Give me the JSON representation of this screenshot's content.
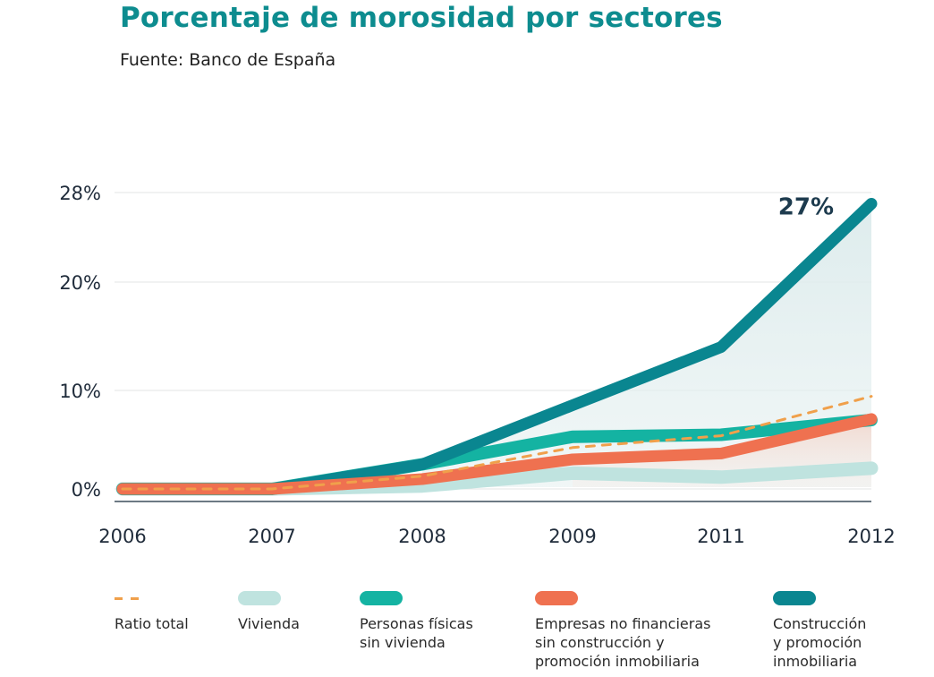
{
  "header": {
    "title": "Porcentaje de morosidad por sectores",
    "source": "Fuente: Banco de España"
  },
  "chart_data": {
    "type": "line",
    "title": "Porcentaje de morosidad por sectores",
    "subtitle": "Fuente: Banco de España",
    "xlabel": "",
    "ylabel": "",
    "x": [
      "2006",
      "2007",
      "2008",
      "2009",
      "2011",
      "2012"
    ],
    "y_ticks": [
      "0%",
      "10%",
      "20%",
      "28%"
    ],
    "grid": true,
    "legend_position": "bottom",
    "annotation": {
      "text": "27%",
      "series": "Construcción y promoción inmobiliaria",
      "x": "2012"
    },
    "series": [
      {
        "name": "Ratio total",
        "style": "dashed",
        "color": "#f0a04b",
        "values": [
          0,
          0,
          1.3,
          4.2,
          5.4,
          9.4
        ]
      },
      {
        "name": "Vivienda",
        "style": "solid",
        "color": "#bfe3df",
        "values": [
          0,
          0,
          0.3,
          1.6,
          1.2,
          2.1
        ]
      },
      {
        "name": "Personas físicas sin vivienda",
        "style": "solid",
        "color": "#14b3a2",
        "values": [
          0,
          0,
          2.5,
          5.3,
          5.5,
          7.0
        ]
      },
      {
        "name": "Empresas no financieras sin construcción y promoción inmobiliaria",
        "style": "solid",
        "color": "#ef7150",
        "values": [
          0,
          0,
          1.0,
          3.0,
          3.6,
          7.1
        ]
      },
      {
        "name": "Construcción y promoción inmobiliaria",
        "style": "solid",
        "color": "#0a8690",
        "values": [
          0,
          0,
          2.5,
          8.5,
          14.0,
          27.0
        ]
      }
    ]
  },
  "legend": [
    {
      "label": "Ratio total",
      "color": "#f0a04b",
      "style": "dashed"
    },
    {
      "label": "Vivienda",
      "color": "#bfe3df",
      "style": "solid"
    },
    {
      "label": "Personas físicas\nsin vivienda",
      "color": "#14b3a2",
      "style": "solid"
    },
    {
      "label": "Empresas no financieras\nsin construcción y\npromoción inmobiliaria",
      "color": "#ef7150",
      "style": "solid"
    },
    {
      "label": "Construcción\ny promoción\ninmobiliaria",
      "color": "#0a8690",
      "style": "solid"
    }
  ]
}
